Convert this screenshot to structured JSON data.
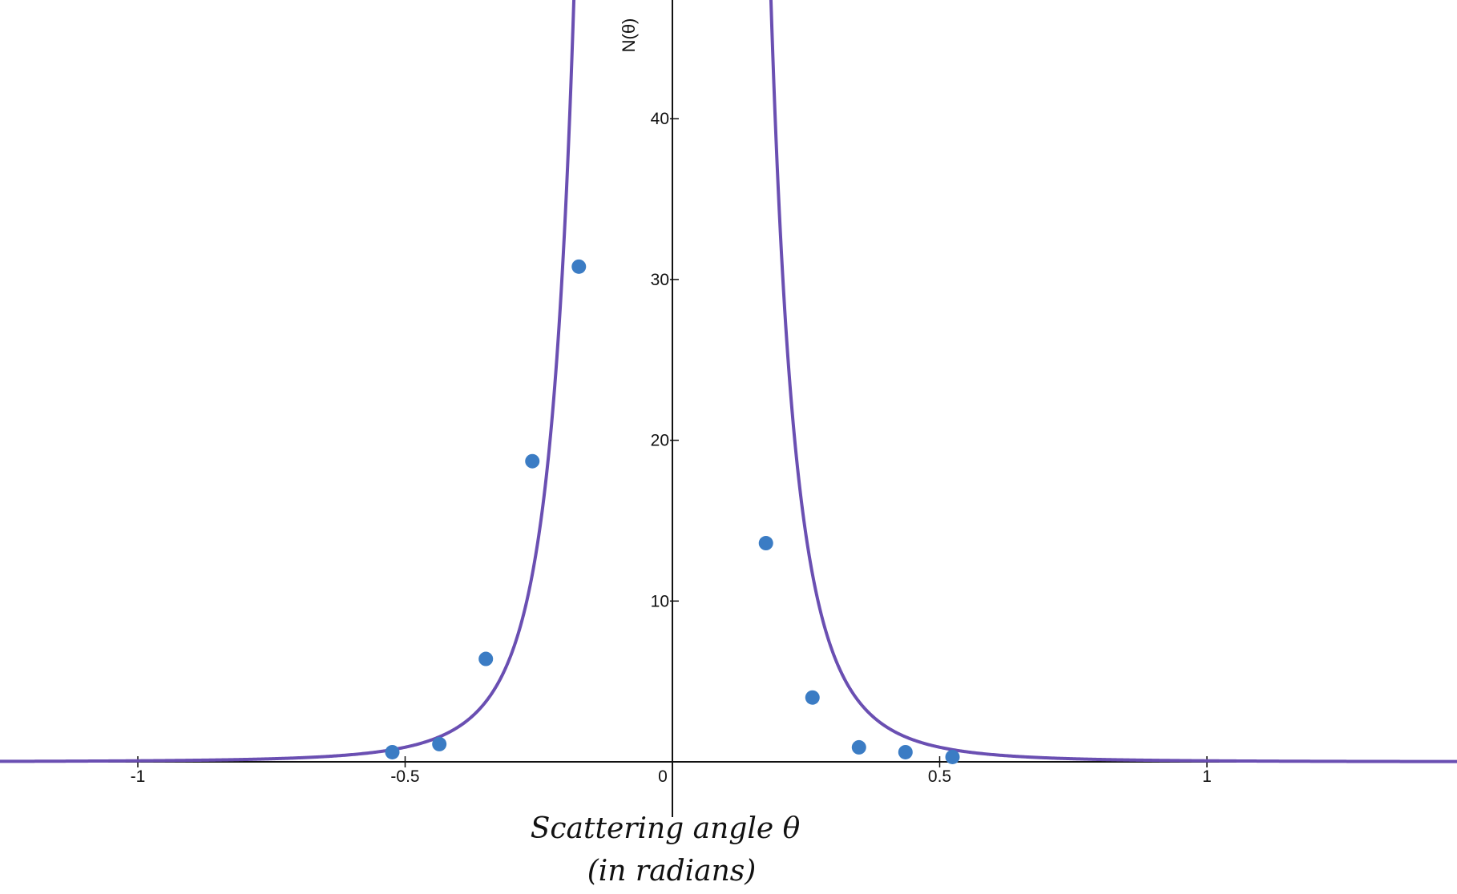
{
  "chart_data": {
    "type": "scatter",
    "xlabel_line1": "Scattering angle θ",
    "xlabel_line2": "(in radians)",
    "ylabel": "N(θ)",
    "xlim": [
      -1.5,
      1.93
    ],
    "ylim": [
      -3.5,
      48.0
    ],
    "x_ticks": [
      {
        "value": -1,
        "label": "-1"
      },
      {
        "value": -0.5,
        "label": "-0.5"
      },
      {
        "value": 0,
        "label": "0"
      },
      {
        "value": 0.5,
        "label": "0.5"
      },
      {
        "value": 1,
        "label": "1"
      }
    ],
    "y_ticks": [
      {
        "value": 10,
        "label": "10"
      },
      {
        "value": 20,
        "label": "20"
      },
      {
        "value": 30,
        "label": "30"
      },
      {
        "value": 40,
        "label": "40"
      }
    ],
    "series": [
      {
        "type": "scatter",
        "color": "#3b7cc4",
        "points": [
          {
            "x": -0.524,
            "y": 0.6
          },
          {
            "x": -0.436,
            "y": 1.1
          },
          {
            "x": -0.349,
            "y": 6.4
          },
          {
            "x": -0.262,
            "y": 18.7
          },
          {
            "x": -0.175,
            "y": 30.8
          },
          {
            "x": 0.175,
            "y": 13.6
          },
          {
            "x": 0.262,
            "y": 4.0
          },
          {
            "x": 0.349,
            "y": 0.9
          },
          {
            "x": 0.436,
            "y": 0.6
          },
          {
            "x": 0.524,
            "y": 0.3
          }
        ]
      },
      {
        "type": "line",
        "color": "#6a4fb2",
        "description": "fitted curve N = a / sin^4(θ/2)",
        "formula_coefficient": 0.0034
      }
    ],
    "grid": false,
    "legend": "none"
  }
}
